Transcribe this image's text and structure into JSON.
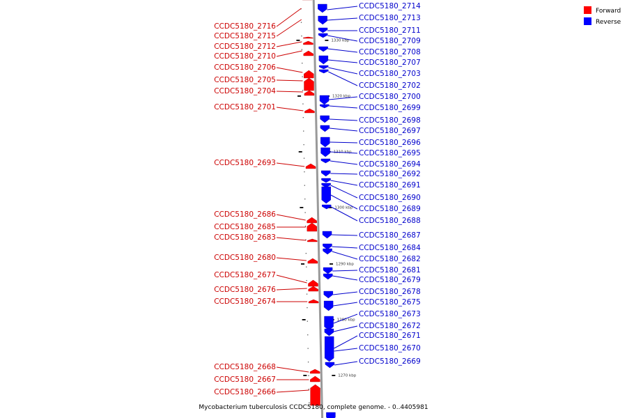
{
  "legend": [
    {
      "label": "Forward",
      "color": "#ff0000"
    },
    {
      "label": "Reverse",
      "color": "#0000ff"
    }
  ],
  "caption": "Mycobacterium tuberculosis CCDC5180, complete genome. - 0..4405981",
  "scale_ticks": [
    {
      "label": "1330 kbp"
    },
    {
      "label": "1320 kbp"
    },
    {
      "label": "1310 kbp"
    },
    {
      "label": "1300 kbp"
    },
    {
      "label": "1290 kbp"
    },
    {
      "label": "1280 kbp"
    },
    {
      "label": "1270 kbp"
    }
  ],
  "forward_genes": [
    {
      "label": "CCDC5180_2716"
    },
    {
      "label": "CCDC5180_2715"
    },
    {
      "label": "CCDC5180_2712"
    },
    {
      "label": "CCDC5180_2710"
    },
    {
      "label": "CCDC5180_2706"
    },
    {
      "label": "CCDC5180_2705"
    },
    {
      "label": "CCDC5180_2704"
    },
    {
      "label": "CCDC5180_2701"
    },
    {
      "label": "CCDC5180_2693"
    },
    {
      "label": "CCDC5180_2686"
    },
    {
      "label": "CCDC5180_2685"
    },
    {
      "label": "CCDC5180_2683"
    },
    {
      "label": "CCDC5180_2680"
    },
    {
      "label": "CCDC5180_2677"
    },
    {
      "label": "CCDC5180_2676"
    },
    {
      "label": "CCDC5180_2674"
    },
    {
      "label": "CCDC5180_2668"
    },
    {
      "label": "CCDC5180_2667"
    },
    {
      "label": "CCDC5180_2666"
    }
  ],
  "reverse_genes": [
    {
      "label": "CCDC5180_2714"
    },
    {
      "label": "CCDC5180_2713"
    },
    {
      "label": "CCDC5180_2711"
    },
    {
      "label": "CCDC5180_2709"
    },
    {
      "label": "CCDC5180_2708"
    },
    {
      "label": "CCDC5180_2707"
    },
    {
      "label": "CCDC5180_2703"
    },
    {
      "label": "CCDC5180_2702"
    },
    {
      "label": "CCDC5180_2700"
    },
    {
      "label": "CCDC5180_2699"
    },
    {
      "label": "CCDC5180_2698"
    },
    {
      "label": "CCDC5180_2697"
    },
    {
      "label": "CCDC5180_2696"
    },
    {
      "label": "CCDC5180_2695"
    },
    {
      "label": "CCDC5180_2694"
    },
    {
      "label": "CCDC5180_2692"
    },
    {
      "label": "CCDC5180_2691"
    },
    {
      "label": "CCDC5180_2690"
    },
    {
      "label": "CCDC5180_2689"
    },
    {
      "label": "CCDC5180_2688"
    },
    {
      "label": "CCDC5180_2687"
    },
    {
      "label": "CCDC5180_2684"
    },
    {
      "label": "CCDC5180_2682"
    },
    {
      "label": "CCDC5180_2681"
    },
    {
      "label": "CCDC5180_2679"
    },
    {
      "label": "CCDC5180_2678"
    },
    {
      "label": "CCDC5180_2675"
    },
    {
      "label": "CCDC5180_2673"
    },
    {
      "label": "CCDC5180_2672"
    },
    {
      "label": "CCDC5180_2671"
    },
    {
      "label": "CCDC5180_2670"
    },
    {
      "label": "CCDC5180_2669"
    }
  ]
}
